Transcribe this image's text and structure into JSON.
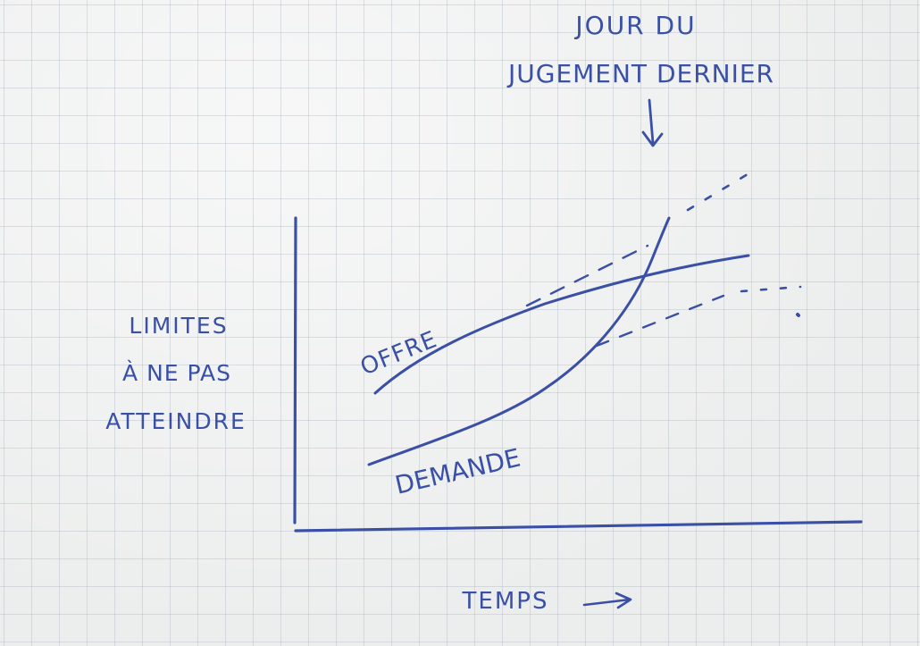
{
  "annotation": {
    "line1": "JOUR DU",
    "line2": "JUGEMENT DERNIER"
  },
  "y_axis_label": {
    "line1": "LIMITES",
    "line2": "À NE PAS",
    "line3": "ATTEINDRE"
  },
  "x_axis_label": "TEMPS",
  "curves": {
    "supply": "OFFRE",
    "demand": "DEMANDE"
  },
  "colors": {
    "ink": "#3a4fa6",
    "paper": "#eceeed",
    "grid": "#a0aab9"
  }
}
